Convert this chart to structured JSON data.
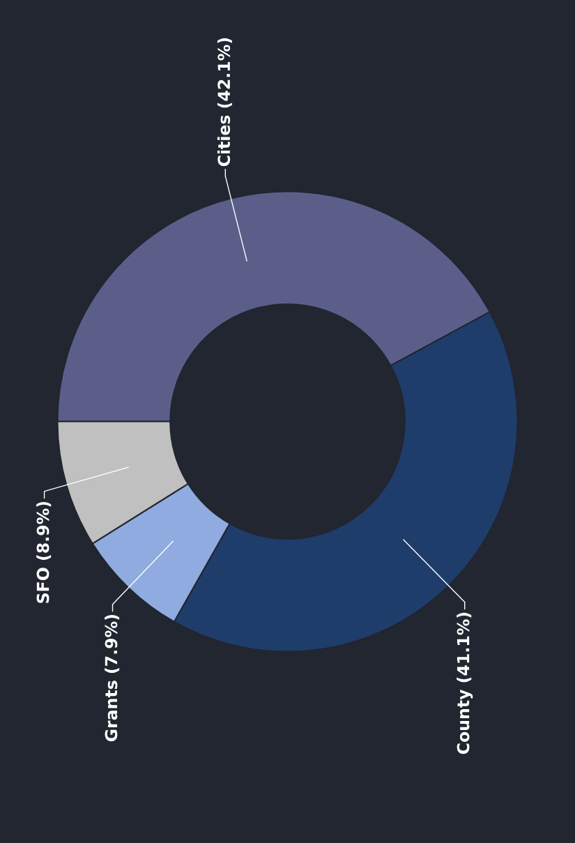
{
  "chart_data": {
    "type": "donut",
    "categories": [
      "Cities",
      "County",
      "Grants",
      "SFO"
    ],
    "values": [
      42.1,
      41.1,
      7.9,
      8.9
    ],
    "colors": [
      "#5c5e8a",
      "#1f3d6b",
      "#8fabdf",
      "#c0c0c0"
    ],
    "value_labels": [
      "(42.1%)",
      "(41.1%)",
      "(7.9%)",
      "(8.9%)"
    ],
    "legend": false
  }
}
